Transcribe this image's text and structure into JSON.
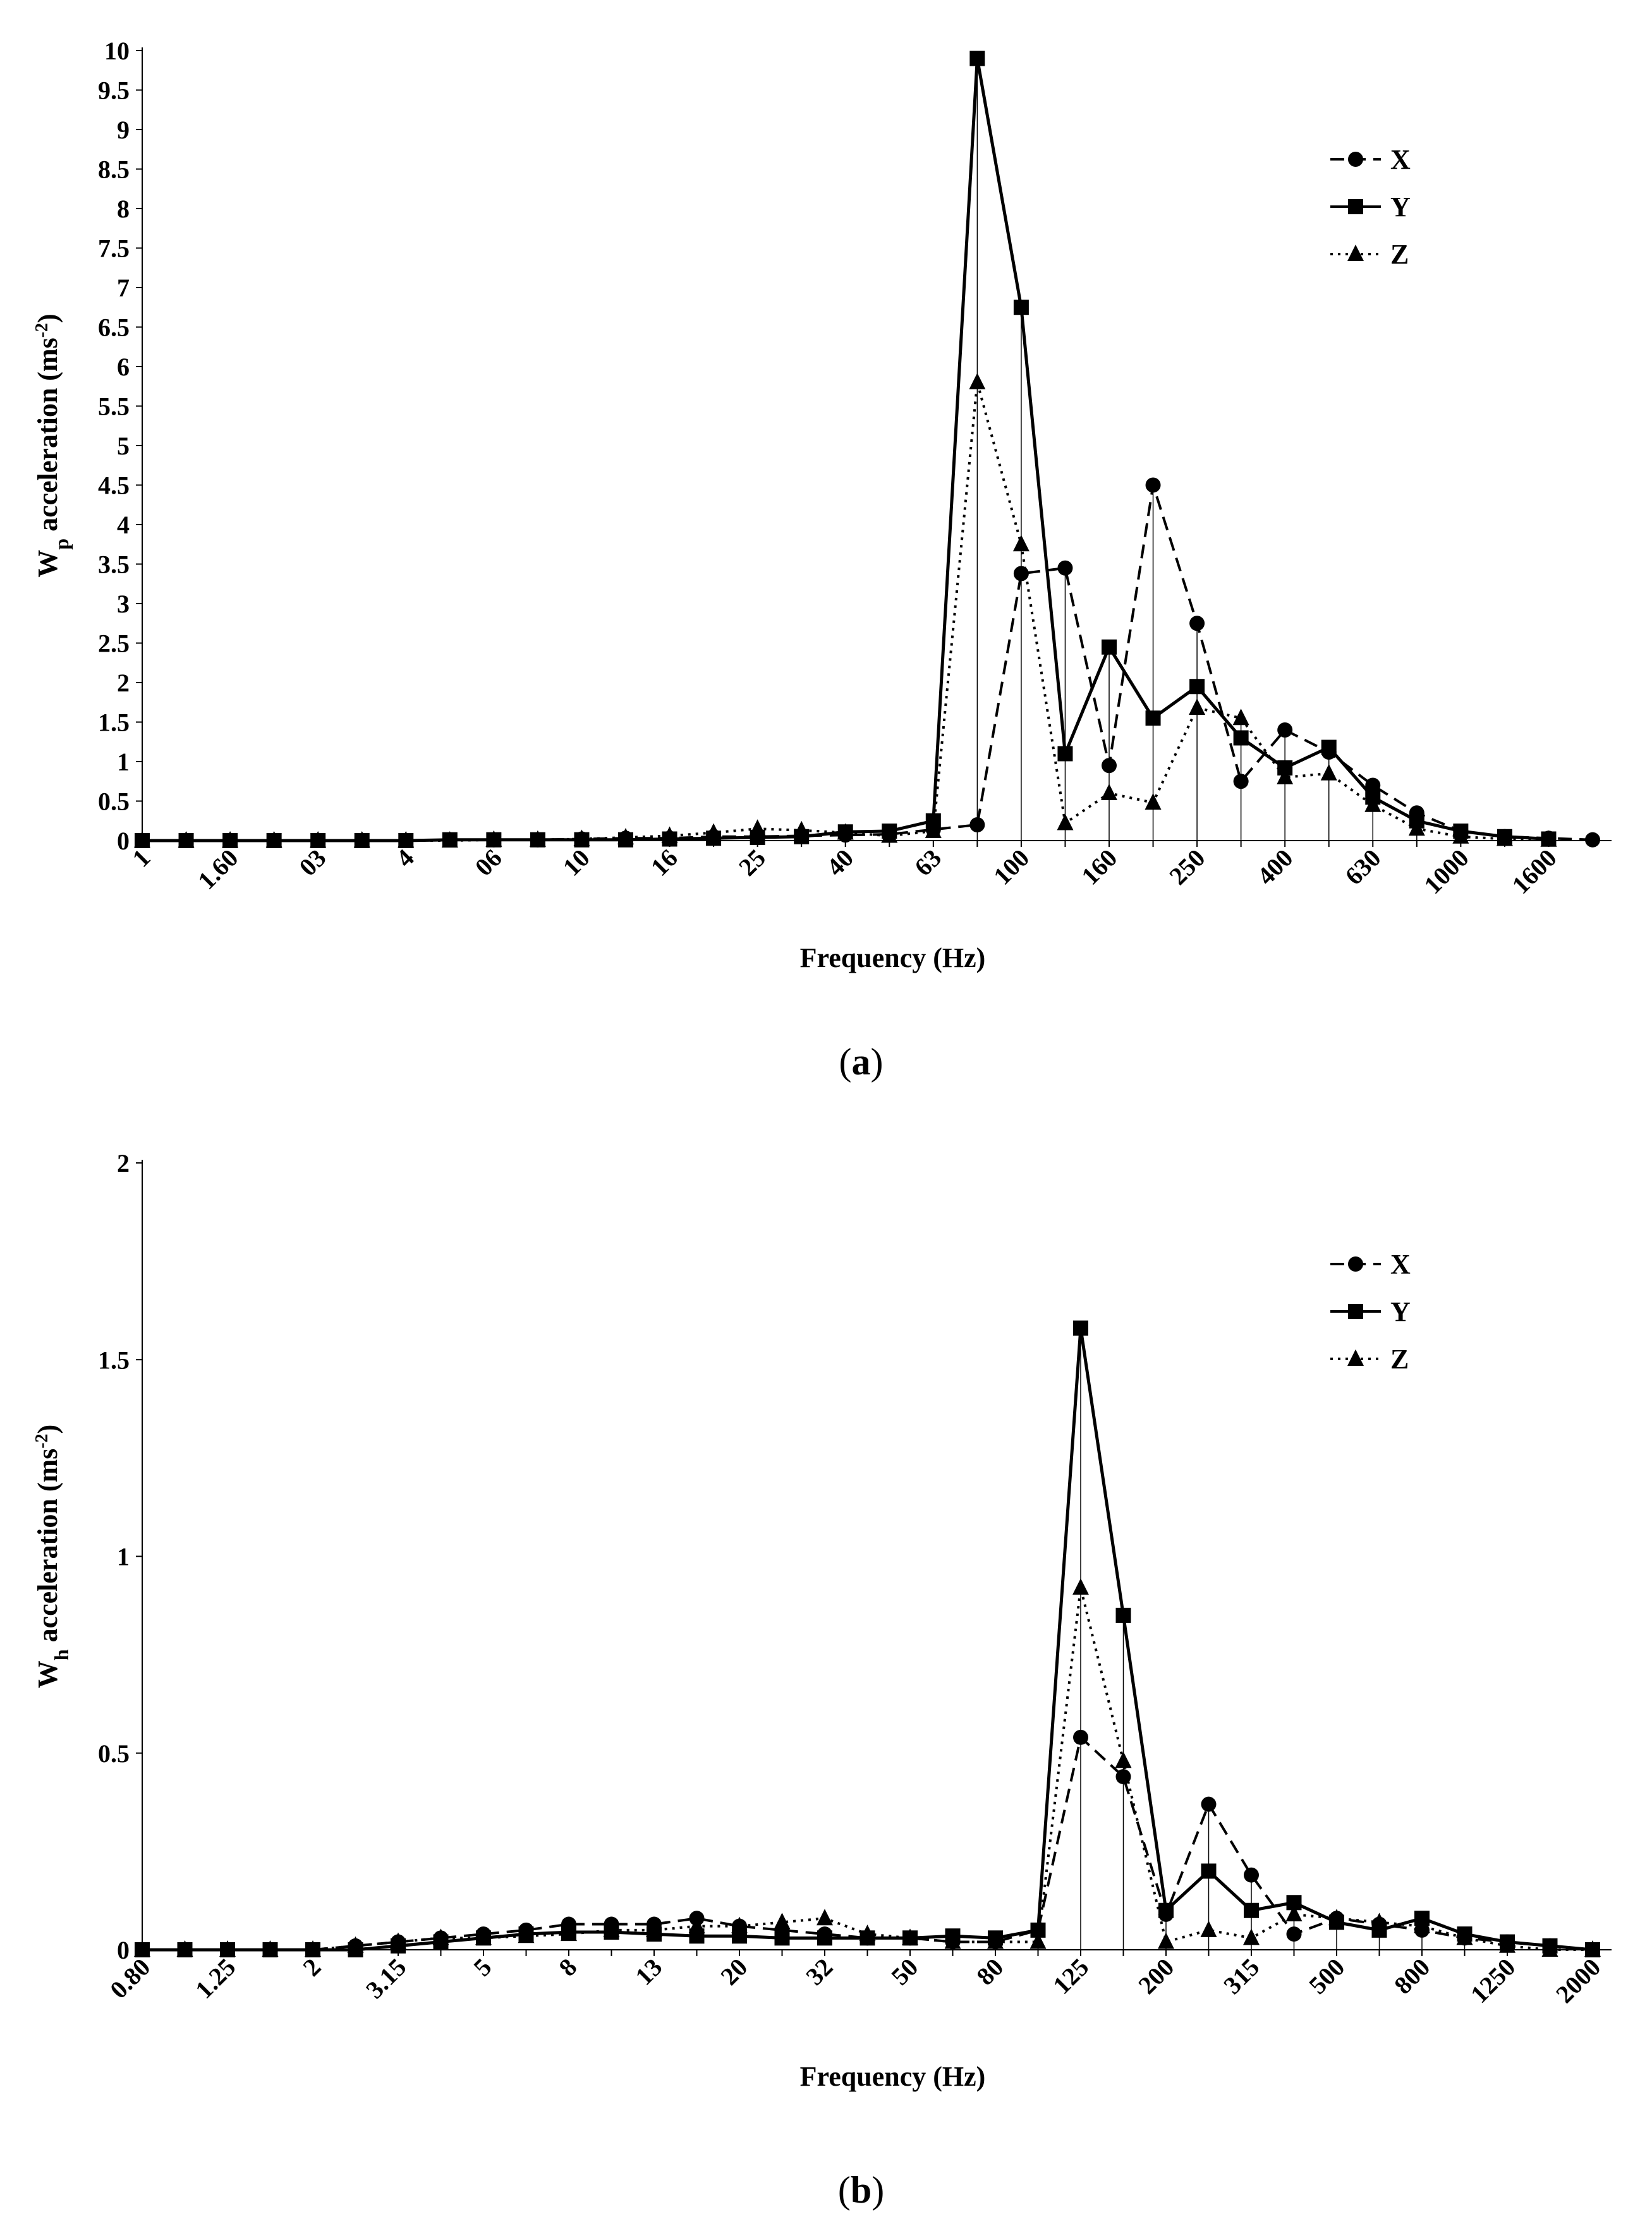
{
  "chart_data": [
    {
      "type": "line",
      "panel": "a",
      "caption_letter": "a",
      "xlabel": "Frequency (Hz)",
      "ylabel_main": "W",
      "ylabel_sub": "p",
      "ylabel_rest": " acceleration  (ms",
      "ylabel_sup": "-2",
      "ylabel_end": ")",
      "ylim": [
        0,
        10
      ],
      "ytick_labels": [
        "0",
        "0.5",
        "1",
        "1.5",
        "2",
        "2.5",
        "3",
        "3.5",
        "4",
        "4.5",
        "5",
        "5.5",
        "6",
        "6.5",
        "7",
        "7.5",
        "8",
        "8.5",
        "9",
        "9.5",
        "10"
      ],
      "xtick_labels": [
        "1",
        "1.60",
        "03",
        "4",
        "06",
        "10",
        "16",
        "25",
        "40",
        "63",
        "100",
        "160",
        "250",
        "400",
        "630",
        "1000",
        "1600"
      ],
      "drop_lines_from_index": 20,
      "legend_position": "top-right",
      "series": [
        {
          "name": "X",
          "style": "dashed",
          "marker": "circle",
          "values": [
            0,
            0,
            0,
            0,
            0,
            0,
            0,
            0.01,
            0.01,
            0.01,
            0.02,
            0.03,
            0.03,
            0.05,
            0.05,
            0.06,
            0.07,
            0.08,
            0.14,
            0.2,
            3.38,
            3.45,
            0.95,
            4.5,
            2.75,
            0.75,
            1.4,
            1.12,
            0.7,
            0.35,
            0.12,
            0.05,
            0.03,
            0.01
          ]
        },
        {
          "name": "Y",
          "style": "solid",
          "marker": "square",
          "values": [
            0,
            0,
            0,
            0,
            0,
            0,
            0,
            0.01,
            0.01,
            0.01,
            0.01,
            0.01,
            0.02,
            0.03,
            0.04,
            0.05,
            0.11,
            0.12,
            0.25,
            9.9,
            6.75,
            1.1,
            2.45,
            1.55,
            1.95,
            1.3,
            0.92,
            1.18,
            0.55,
            0.25,
            0.12,
            0.05,
            0.02
          ]
        },
        {
          "name": "Z",
          "style": "dotted",
          "marker": "triangle",
          "values": [
            0,
            0,
            0,
            0,
            0,
            0,
            0,
            0,
            0.01,
            0.01,
            0.02,
            0.04,
            0.06,
            0.1,
            0.15,
            0.13,
            0.1,
            0.06,
            0.12,
            5.8,
            3.75,
            0.22,
            0.6,
            0.48,
            1.68,
            1.55,
            0.8,
            0.85,
            0.45,
            0.15,
            0.05,
            0.02,
            0.01
          ]
        }
      ]
    },
    {
      "type": "line",
      "panel": "b",
      "caption_letter": "b",
      "xlabel": "Frequency (Hz)",
      "ylabel_main": "W",
      "ylabel_sub": "h",
      "ylabel_rest": " acceleration  (ms",
      "ylabel_sup": "-2",
      "ylabel_end": ")",
      "ylim": [
        0,
        2
      ],
      "ytick_labels": [
        "0",
        "0.5",
        "1",
        "1.5",
        "2"
      ],
      "xtick_labels": [
        "0.80",
        "1.25",
        "2",
        "3.15",
        "5",
        "8",
        "13",
        "20",
        "32",
        "50",
        "80",
        "125",
        "200",
        "315",
        "500",
        "800",
        "1250",
        "2000"
      ],
      "drop_lines_from_index": 20,
      "legend_position": "top-right",
      "series": [
        {
          "name": "X",
          "style": "dashed",
          "marker": "circle",
          "values": [
            0,
            0,
            0,
            0,
            0,
            0.01,
            0.02,
            0.03,
            0.04,
            0.05,
            0.065,
            0.065,
            0.065,
            0.08,
            0.06,
            0.05,
            0.04,
            0.03,
            0.03,
            0.02,
            0.02,
            0.05,
            0.54,
            0.44,
            0.09,
            0.37,
            0.19,
            0.04,
            0.08,
            0.065,
            0.05,
            0.03,
            0.02,
            0.01,
            0
          ]
        },
        {
          "name": "Y",
          "style": "solid",
          "marker": "square",
          "values": [
            0,
            0,
            0,
            0,
            0,
            0,
            0.01,
            0.02,
            0.03,
            0.04,
            0.045,
            0.045,
            0.04,
            0.035,
            0.035,
            0.03,
            0.03,
            0.03,
            0.03,
            0.035,
            0.03,
            0.05,
            1.58,
            0.85,
            0.1,
            0.2,
            0.1,
            0.12,
            0.07,
            0.05,
            0.08,
            0.04,
            0.02,
            0.01,
            0
          ]
        },
        {
          "name": "Z",
          "style": "dotted",
          "marker": "triangle",
          "values": [
            0,
            0,
            0,
            0,
            0,
            0.01,
            0.02,
            0.03,
            0.03,
            0.035,
            0.04,
            0.05,
            0.05,
            0.06,
            0.06,
            0.07,
            0.08,
            0.04,
            0.03,
            0.02,
            0.02,
            0.02,
            0.92,
            0.48,
            0.02,
            0.05,
            0.03,
            0.09,
            0.08,
            0.07,
            0.06,
            0.03,
            0.01,
            0,
            0
          ]
        }
      ]
    }
  ]
}
